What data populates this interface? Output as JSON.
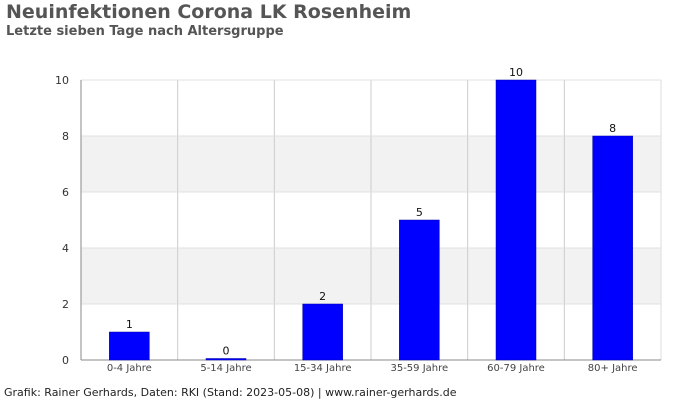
{
  "title": "Neuinfektionen Corona LK Rosenheim",
  "subtitle": "Letzte sieben Tage nach Altersgruppe",
  "footer": "Grafik: Rainer Gerhards, Daten: RKI (Stand: 2023-05-08) | www.rainer-gerhards.de",
  "colors": {
    "bar": "#0000ff",
    "band": "#f2f2f2",
    "grid": "#cccccc",
    "axis": "#888888"
  },
  "chart_data": {
    "type": "bar",
    "categories": [
      "0-4 Jahre",
      "5-14 Jahre",
      "15-34 Jahre",
      "35-59 Jahre",
      "60-79 Jahre",
      "80+ Jahre"
    ],
    "values": [
      1,
      0,
      2,
      5,
      10,
      8
    ],
    "ylim": [
      0,
      10
    ],
    "yticks": [
      0,
      2,
      4,
      6,
      8,
      10
    ],
    "grid": true,
    "legend": "none"
  }
}
